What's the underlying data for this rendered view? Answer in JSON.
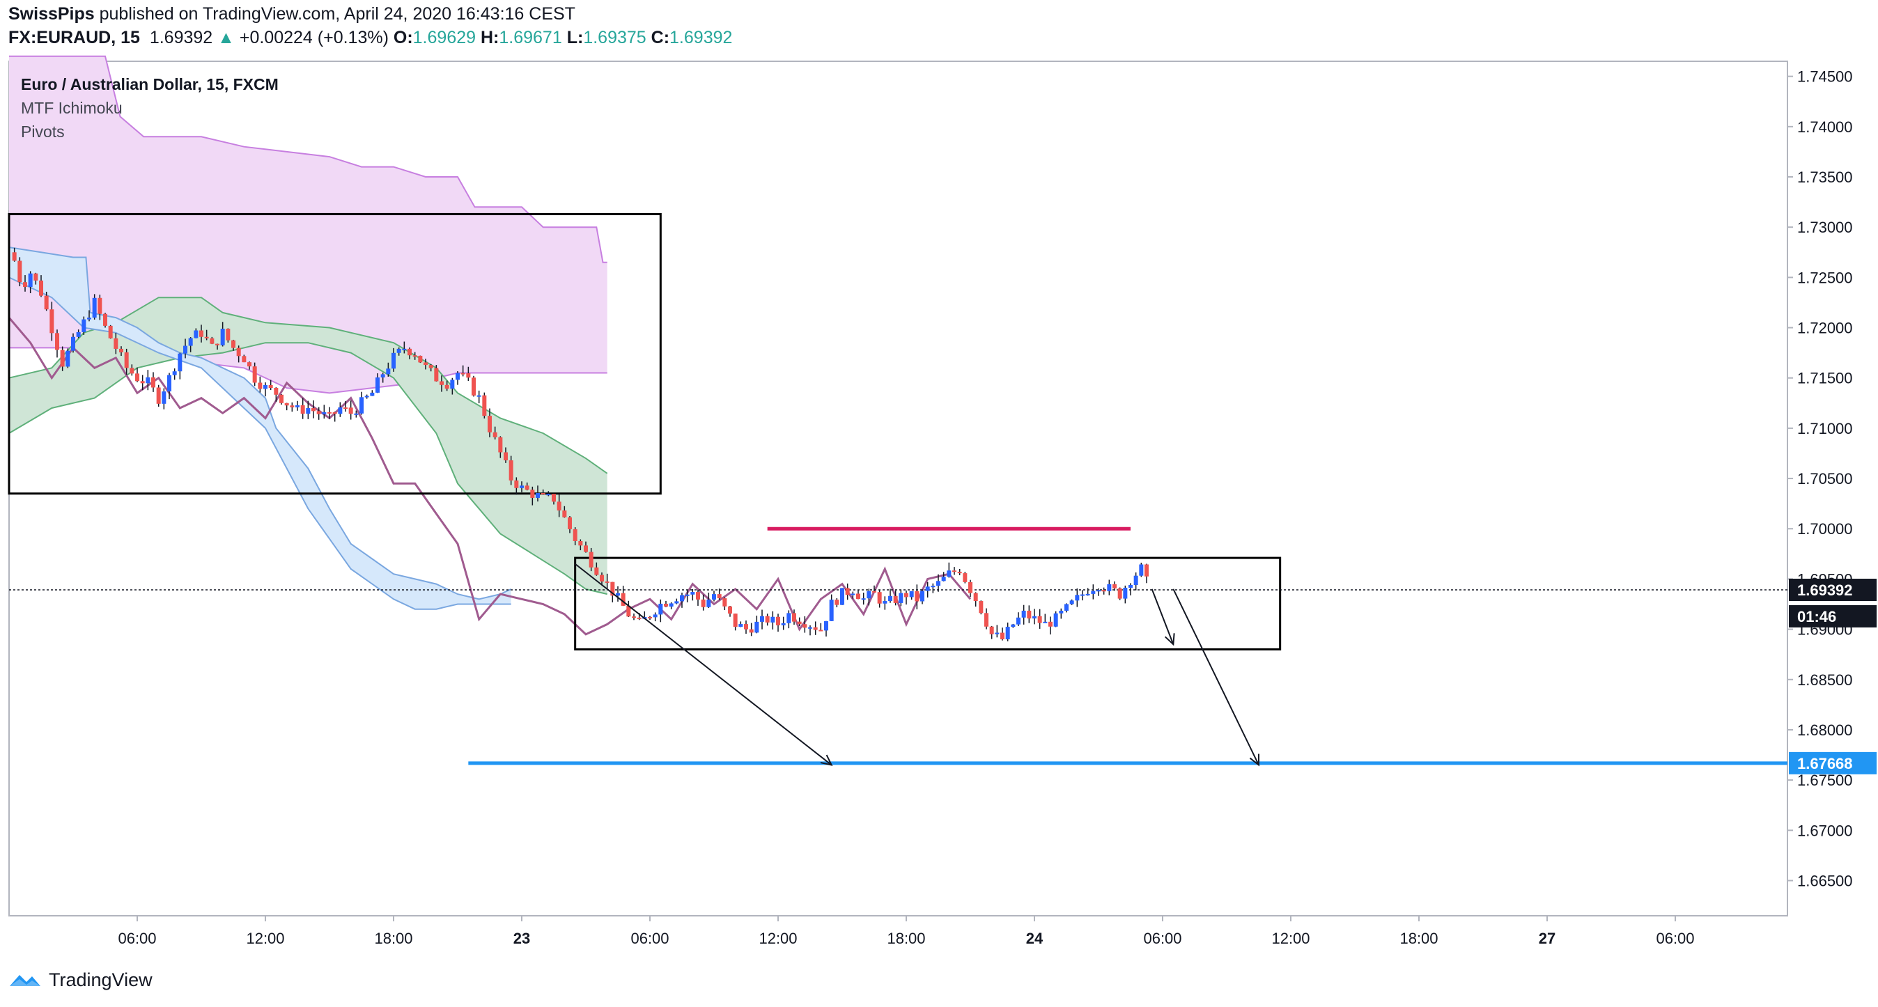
{
  "header": {
    "publisher": "SwissPips",
    "published_text": "published on TradingView.com, April 24, 2020 16:43:16 CEST",
    "symbol": "FX:EURAUD, 15",
    "last": "1.69392",
    "change_arrow": "▲",
    "change": "+0.00224 (+0.13%)",
    "open_label": "O:",
    "open": "1.69629",
    "high_label": "H:",
    "high": "1.69671",
    "low_label": "L:",
    "low": "1.69375",
    "close_label": "C:",
    "close": "1.69392"
  },
  "legend": {
    "main": "Euro / Australian Dollar, 15, FXCM",
    "indicator1": "MTF Ichimoku",
    "indicator2": "Pivots"
  },
  "footer": {
    "brand": "TradingView",
    "logo_icon": "tradingview-logo-icon"
  },
  "colors": {
    "up": "#2962ff",
    "down": "#ef5350",
    "cloud_purple": "#f1d9f6",
    "cloud_purple_line": "#c77fe0",
    "cloud_blue": "#d6e8fb",
    "cloud_green": "#e3f2e8",
    "cloud_green_dark": "#cfe5d6",
    "lagging": "#a05b8f",
    "support": "#2196f3",
    "resistance": "#d81b60"
  },
  "chart_data": {
    "type": "candlestick",
    "symbol": "FX:EURAUD",
    "timeframe": "15",
    "y_ticks": [
      "1.74500",
      "1.74000",
      "1.73500",
      "1.73000",
      "1.72500",
      "1.72000",
      "1.71500",
      "1.71000",
      "1.70500",
      "1.70000",
      "1.69500",
      "1.69000",
      "1.68500",
      "1.68000",
      "1.67500",
      "1.67000",
      "1.66500"
    ],
    "x_ticks": [
      "06:00",
      "12:00",
      "18:00",
      "23",
      "06:00",
      "12:00",
      "18:00",
      "24",
      "06:00",
      "12:00",
      "18:00",
      "27",
      "06:00"
    ],
    "ylim": [
      1.6615,
      1.7465
    ],
    "price_labels": {
      "current": "1.69392",
      "countdown": "01:46",
      "support": "1.67668"
    },
    "levels": [
      {
        "price": 1.67668,
        "role": "support"
      },
      {
        "price": 1.7,
        "role": "resistance"
      }
    ],
    "zones": [
      {
        "y_top": 1.7313,
        "y_bottom": 1.7035
      },
      {
        "y_top": 1.6971,
        "y_bottom": 1.688
      }
    ],
    "price_path": [
      [
        0,
        1.7275
      ],
      [
        0.3,
        1.7265
      ],
      [
        0.6,
        1.724
      ],
      [
        1.0,
        1.7255
      ],
      [
        1.5,
        1.7235
      ],
      [
        2.0,
        1.72
      ],
      [
        2.5,
        1.7165
      ],
      [
        3.0,
        1.7185
      ],
      [
        3.5,
        1.7205
      ],
      [
        4.0,
        1.7225
      ],
      [
        4.5,
        1.72
      ],
      [
        5.0,
        1.718
      ],
      [
        5.5,
        1.716
      ],
      [
        6.0,
        1.715
      ],
      [
        6.5,
        1.7145
      ],
      [
        7.0,
        1.713
      ],
      [
        7.5,
        1.715
      ],
      [
        8.0,
        1.7175
      ],
      [
        8.5,
        1.719
      ],
      [
        9.0,
        1.7195
      ],
      [
        9.5,
        1.718
      ],
      [
        10.0,
        1.7195
      ],
      [
        10.5,
        1.718
      ],
      [
        11.0,
        1.717
      ],
      [
        11.5,
        1.715
      ],
      [
        12.0,
        1.714
      ],
      [
        12.5,
        1.7135
      ],
      [
        13.0,
        1.7125
      ],
      [
        13.5,
        1.7118
      ],
      [
        14.0,
        1.712
      ],
      [
        14.5,
        1.7115
      ],
      [
        15.0,
        1.711
      ],
      [
        15.5,
        1.712
      ],
      [
        16.0,
        1.7115
      ],
      [
        16.5,
        1.7125
      ],
      [
        17.0,
        1.7135
      ],
      [
        17.5,
        1.7155
      ],
      [
        18.0,
        1.717
      ],
      [
        18.5,
        1.718
      ],
      [
        19.0,
        1.7175
      ],
      [
        19.5,
        1.716
      ],
      [
        20.0,
        1.715
      ],
      [
        20.5,
        1.7145
      ],
      [
        21.0,
        1.7155
      ],
      [
        21.5,
        1.7145
      ],
      [
        22.0,
        1.713
      ],
      [
        22.5,
        1.71
      ],
      [
        23.0,
        1.7075
      ],
      [
        23.5,
        1.705
      ],
      [
        24.0,
        1.704
      ],
      [
        24.5,
        1.7035
      ],
      [
        25.0,
        1.703
      ],
      [
        25.5,
        1.703
      ],
      [
        26.0,
        1.701
      ],
      [
        26.5,
        1.699
      ],
      [
        27.0,
        1.6975
      ],
      [
        27.5,
        1.696
      ],
      [
        28.0,
        1.6945
      ],
      [
        28.5,
        1.693
      ],
      [
        29.0,
        1.6915
      ],
      [
        29.5,
        1.6905
      ],
      [
        30.0,
        1.6915
      ],
      [
        30.5,
        1.6925
      ],
      [
        31.0,
        1.693
      ],
      [
        31.5,
        1.6935
      ],
      [
        32.0,
        1.6935
      ],
      [
        32.5,
        1.6925
      ],
      [
        33.0,
        1.6935
      ],
      [
        33.5,
        1.692
      ],
      [
        34.0,
        1.6905
      ],
      [
        34.5,
        1.69
      ],
      [
        35.0,
        1.6905
      ],
      [
        35.5,
        1.691
      ],
      [
        36.0,
        1.6905
      ],
      [
        36.5,
        1.6915
      ],
      [
        37.0,
        1.691
      ],
      [
        37.5,
        1.6905
      ],
      [
        38.0,
        1.69
      ],
      [
        38.5,
        1.6925
      ],
      [
        39.0,
        1.6935
      ],
      [
        39.5,
        1.694
      ],
      [
        40.0,
        1.693
      ],
      [
        40.5,
        1.6935
      ],
      [
        41.0,
        1.6925
      ],
      [
        41.5,
        1.693
      ],
      [
        42.0,
        1.6935
      ],
      [
        42.5,
        1.693
      ],
      [
        43.0,
        1.694
      ],
      [
        43.5,
        1.6945
      ],
      [
        44.0,
        1.6955
      ],
      [
        44.5,
        1.696
      ],
      [
        45.0,
        1.694
      ],
      [
        45.5,
        1.692
      ],
      [
        46.0,
        1.6895
      ],
      [
        46.5,
        1.689
      ],
      [
        47.0,
        1.6905
      ],
      [
        47.5,
        1.6915
      ],
      [
        48.0,
        1.691
      ],
      [
        48.5,
        1.6905
      ],
      [
        49.0,
        1.691
      ],
      [
        49.5,
        1.692
      ],
      [
        50.0,
        1.693
      ],
      [
        50.5,
        1.694
      ],
      [
        51.0,
        1.6945
      ],
      [
        51.5,
        1.694
      ],
      [
        52.0,
        1.6935
      ],
      [
        52.5,
        1.695
      ],
      [
        53.0,
        1.696
      ],
      [
        53.4,
        1.6939
      ]
    ],
    "lagging_path": [
      [
        0,
        1.721
      ],
      [
        1.0,
        1.7185
      ],
      [
        2.0,
        1.715
      ],
      [
        3.0,
        1.718
      ],
      [
        4.0,
        1.716
      ],
      [
        5.0,
        1.717
      ],
      [
        6.0,
        1.7135
      ],
      [
        7.0,
        1.715
      ],
      [
        8.0,
        1.712
      ],
      [
        9.0,
        1.713
      ],
      [
        10.0,
        1.7115
      ],
      [
        11.0,
        1.713
      ],
      [
        12.0,
        1.711
      ],
      [
        13.0,
        1.7145
      ],
      [
        14.0,
        1.7125
      ],
      [
        15.0,
        1.711
      ],
      [
        16.0,
        1.713
      ],
      [
        17.0,
        1.709
      ],
      [
        18.0,
        1.7045
      ],
      [
        19.0,
        1.7045
      ],
      [
        20.0,
        1.7015
      ],
      [
        21.0,
        1.6985
      ],
      [
        22.0,
        1.691
      ],
      [
        23.0,
        1.6935
      ],
      [
        24.0,
        1.693
      ],
      [
        25.0,
        1.6925
      ],
      [
        26.0,
        1.6915
      ],
      [
        27.0,
        1.6895
      ],
      [
        28.0,
        1.6905
      ],
      [
        29.0,
        1.692
      ],
      [
        30.0,
        1.693
      ],
      [
        31.0,
        1.691
      ],
      [
        32.0,
        1.6945
      ],
      [
        33.0,
        1.6925
      ],
      [
        34.0,
        1.694
      ],
      [
        35.0,
        1.692
      ],
      [
        36.0,
        1.695
      ],
      [
        37.0,
        1.69
      ],
      [
        38.0,
        1.693
      ],
      [
        39.0,
        1.6945
      ],
      [
        40.0,
        1.6915
      ],
      [
        41.0,
        1.696
      ],
      [
        42.0,
        1.6905
      ],
      [
        43.0,
        1.695
      ],
      [
        44.0,
        1.6955
      ],
      [
        45.0,
        1.693
      ]
    ],
    "cloud_purple": {
      "top": [
        [
          0,
          1.747
        ],
        [
          4.5,
          1.747
        ],
        [
          5.2,
          1.741
        ],
        [
          6.3,
          1.739
        ],
        [
          9.0,
          1.739
        ],
        [
          11.0,
          1.738
        ],
        [
          15.0,
          1.737
        ],
        [
          16.5,
          1.736
        ],
        [
          18.0,
          1.736
        ],
        [
          19.5,
          1.735
        ],
        [
          21.0,
          1.735
        ],
        [
          21.8,
          1.732
        ],
        [
          24.0,
          1.732
        ],
        [
          25.0,
          1.73
        ],
        [
          27.5,
          1.73
        ],
        [
          27.8,
          1.7265
        ],
        [
          28.0,
          1.7265
        ]
      ],
      "bottom": [
        [
          0,
          1.718
        ],
        [
          3.5,
          1.718
        ],
        [
          4.5,
          1.717
        ],
        [
          6.0,
          1.7175
        ],
        [
          9.0,
          1.7165
        ],
        [
          11.0,
          1.716
        ],
        [
          13.0,
          1.714
        ],
        [
          15.0,
          1.7135
        ],
        [
          17.0,
          1.714
        ],
        [
          19.0,
          1.7145
        ],
        [
          21.0,
          1.7155
        ],
        [
          28.0,
          1.7155
        ]
      ]
    },
    "cloud_blue": {
      "top": [
        [
          0,
          1.728
        ],
        [
          1.5,
          1.7275
        ],
        [
          3.0,
          1.727
        ],
        [
          3.6,
          1.727
        ],
        [
          3.8,
          1.7215
        ],
        [
          5.0,
          1.721
        ],
        [
          6.0,
          1.72
        ],
        [
          7.0,
          1.7185
        ],
        [
          8.0,
          1.7175
        ],
        [
          9.0,
          1.717
        ],
        [
          10.0,
          1.716
        ],
        [
          11.0,
          1.715
        ],
        [
          12.0,
          1.713
        ],
        [
          12.5,
          1.71
        ],
        [
          14.0,
          1.706
        ],
        [
          15.0,
          1.702
        ],
        [
          16.0,
          1.6985
        ],
        [
          17.0,
          1.697
        ],
        [
          18.0,
          1.6955
        ],
        [
          19.0,
          1.695
        ],
        [
          20.0,
          1.6945
        ],
        [
          21.0,
          1.6935
        ],
        [
          22.0,
          1.693
        ],
        [
          23.0,
          1.6935
        ],
        [
          23.5,
          1.694
        ]
      ],
      "bottom": [
        [
          0,
          1.725
        ],
        [
          2.0,
          1.723
        ],
        [
          3.5,
          1.72
        ],
        [
          5.0,
          1.7195
        ],
        [
          7.0,
          1.7175
        ],
        [
          9.0,
          1.716
        ],
        [
          11.0,
          1.712
        ],
        [
          12.0,
          1.71
        ],
        [
          13.0,
          1.706
        ],
        [
          14.0,
          1.702
        ],
        [
          15.0,
          1.699
        ],
        [
          16.0,
          1.696
        ],
        [
          17.0,
          1.6945
        ],
        [
          18.0,
          1.693
        ],
        [
          19.0,
          1.692
        ],
        [
          20.0,
          1.692
        ],
        [
          21.0,
          1.6925
        ],
        [
          22.0,
          1.6925
        ],
        [
          23.0,
          1.6925
        ],
        [
          23.5,
          1.6925
        ]
      ]
    },
    "cloud_green": {
      "top": [
        [
          0,
          1.715
        ],
        [
          2.0,
          1.716
        ],
        [
          3.5,
          1.7195
        ],
        [
          5.0,
          1.7205
        ],
        [
          7.0,
          1.723
        ],
        [
          9.0,
          1.723
        ],
        [
          10.0,
          1.7215
        ],
        [
          12.0,
          1.7205
        ],
        [
          15.0,
          1.72
        ],
        [
          18.0,
          1.7185
        ],
        [
          20.0,
          1.716
        ],
        [
          21.0,
          1.7135
        ],
        [
          23.0,
          1.711
        ],
        [
          25.0,
          1.7095
        ],
        [
          27.0,
          1.707
        ],
        [
          28.0,
          1.7055
        ]
      ],
      "bottom": [
        [
          0,
          1.7095
        ],
        [
          2.0,
          1.712
        ],
        [
          4.0,
          1.713
        ],
        [
          6.0,
          1.716
        ],
        [
          8.0,
          1.717
        ],
        [
          10.0,
          1.7175
        ],
        [
          12.0,
          1.7185
        ],
        [
          14.0,
          1.7185
        ],
        [
          16.0,
          1.7175
        ],
        [
          18.0,
          1.715
        ],
        [
          20.0,
          1.7095
        ],
        [
          21.0,
          1.7045
        ],
        [
          23.0,
          1.6995
        ],
        [
          24.5,
          1.6975
        ],
        [
          26.0,
          1.6955
        ],
        [
          27.0,
          1.694
        ],
        [
          28.0,
          1.6935
        ]
      ]
    },
    "annotations": [
      {
        "type": "arrow",
        "from": [
          26.5,
          1.6965
        ],
        "to": [
          38.5,
          1.6765
        ]
      },
      {
        "type": "arrow",
        "from": [
          53.5,
          1.694
        ],
        "to": [
          54.5,
          1.6885
        ]
      },
      {
        "type": "arrow",
        "from": [
          54.5,
          1.694
        ],
        "to": [
          58.5,
          1.6765
        ]
      }
    ]
  }
}
